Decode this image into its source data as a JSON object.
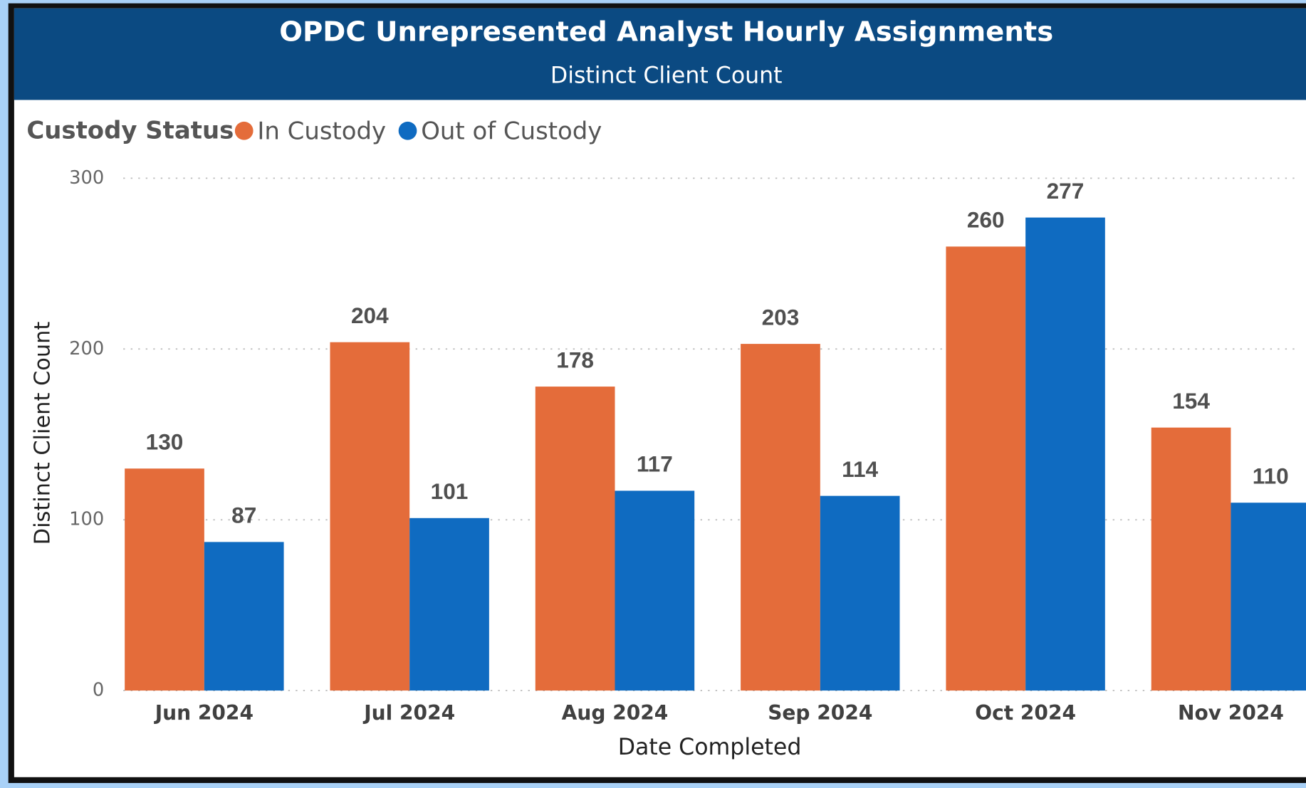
{
  "chart_data": {
    "type": "bar",
    "title": "OPDC Unrepresented Analyst Hourly Assignments",
    "subtitle": "Distinct Client Count",
    "legend_title": "Custody Status",
    "x_label": "Date Completed",
    "y_label": "Distinct Client Count",
    "categories": [
      "Jun 2024",
      "Jul 2024",
      "Aug 2024",
      "Sep 2024",
      "Oct 2024",
      "Nov 2024"
    ],
    "series": [
      {
        "name": "In Custody",
        "color": "#e46c3a",
        "values": [
          130,
          204,
          178,
          203,
          260,
          154
        ]
      },
      {
        "name": "Out of Custody",
        "color": "#0f6bc1",
        "values": [
          87,
          101,
          117,
          114,
          277,
          110
        ]
      }
    ],
    "ylim": [
      0,
      300
    ],
    "yticks": [
      0,
      100,
      200,
      300
    ],
    "grid": true,
    "legend": "top-left"
  }
}
